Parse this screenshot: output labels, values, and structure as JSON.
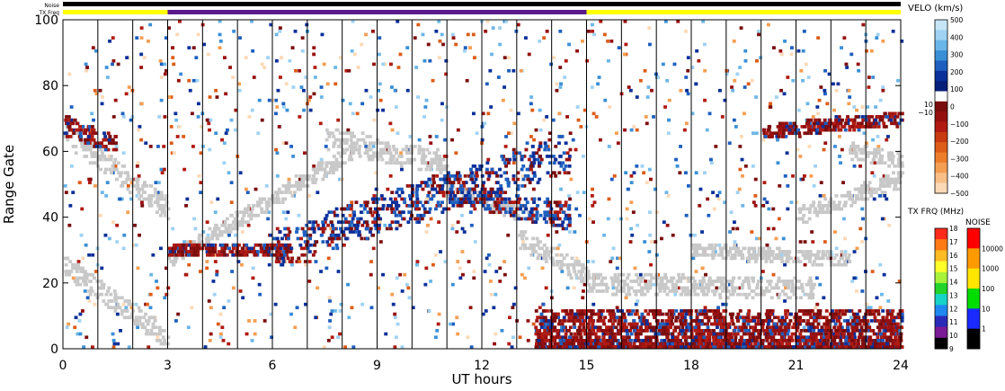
{
  "chart_data": {
    "type": "heatmap",
    "xlabel": "UT hours",
    "ylabel": "Range Gate",
    "xlim": [
      0,
      24
    ],
    "ylim": [
      0,
      100
    ],
    "xticks": [
      "0",
      "3",
      "6",
      "9",
      "12",
      "15",
      "18",
      "21",
      "24"
    ],
    "yticks": [
      "0",
      "20",
      "40",
      "60",
      "80",
      "100"
    ],
    "grid_x_hours": [
      1,
      2,
      3,
      4,
      5,
      6,
      7,
      8,
      9,
      10,
      11,
      12,
      13,
      14,
      15,
      16,
      17,
      18,
      19,
      20,
      21,
      22,
      23
    ],
    "top_bars": {
      "noise_label": "Noise",
      "txfreq_label": "TX Freq",
      "noise_segments": [
        {
          "start": 0,
          "end": 24,
          "color": "#000000"
        }
      ],
      "txfreq_segments": [
        {
          "start": 0,
          "end": 3.0,
          "color": "#ffff00"
        },
        {
          "start": 3.0,
          "end": 15.0,
          "color": "#5a1a8c"
        },
        {
          "start": 15.0,
          "end": 24,
          "color": "#ffff00"
        }
      ]
    },
    "velocity_colorbar": {
      "title": "VELO (km/s)",
      "ticks": [
        "500",
        "400",
        "300",
        "200",
        "100",
        "0",
        "−100",
        "−200",
        "−300",
        "−400",
        "−500"
      ],
      "side_labels": [
        "10",
        "−10"
      ],
      "colors": [
        "#c6e6f8",
        "#9fd2f3",
        "#6bb6e8",
        "#3a8fd6",
        "#1e5fbf",
        "#0a2f9a",
        "#06207a",
        "#ffffff",
        "#7a0d0d",
        "#960f0f",
        "#b01a12",
        "#c83a10",
        "#dd5c18",
        "#ec7e2a",
        "#f49e52",
        "#f9bf86",
        "#fcd9b6"
      ]
    },
    "txfreq_colorbar": {
      "title": "TX FRQ (MHz)",
      "ticks": [
        "18",
        "17",
        "16",
        "15",
        "14",
        "13",
        "12",
        "11",
        "10",
        "9"
      ],
      "colors": [
        "#ff2a1a",
        "#ff7a14",
        "#ffbb22",
        "#ffff2a",
        "#a8f23a",
        "#22d42a",
        "#16d4c8",
        "#1e88f0",
        "#2a2ab8",
        "#7a1a96",
        "#000000"
      ]
    },
    "noise_colorbar": {
      "title": "NOISE",
      "ticks": [
        "10000",
        "1000",
        "100",
        "10",
        "1"
      ],
      "colors": [
        "#ff0000",
        "#ff9a00",
        "#ffe600",
        "#00dd00",
        "#1a2aff",
        "#000000"
      ]
    },
    "scatter": {
      "ground_color": "#c8c8c8",
      "positive_colors": [
        "#0a2f9a",
        "#1e5fbf",
        "#3a8fd6",
        "#6bb6e8",
        "#9fd2f3"
      ],
      "negative_colors": [
        "#7a0d0d",
        "#960f0f",
        "#b01a12",
        "#dd5c18",
        "#f49e52",
        "#fcd9b6"
      ],
      "ground_bands": [
        {
          "t0": 0.0,
          "t1": 3.0,
          "g0": 66,
          "g1": 42,
          "w": 7
        },
        {
          "t0": 0.0,
          "t1": 3.0,
          "g0": 25,
          "g1": 3,
          "w": 6
        },
        {
          "t0": 3.0,
          "t1": 8.3,
          "g0": 27,
          "g1": 60,
          "w": 5
        },
        {
          "t0": 7.5,
          "t1": 11.0,
          "g0": 64,
          "g1": 56,
          "w": 7
        },
        {
          "t0": 11.0,
          "t1": 13.5,
          "g0": 48,
          "g1": 40,
          "w": 5
        },
        {
          "t0": 13.0,
          "t1": 15.0,
          "g0": 34,
          "g1": 22,
          "w": 6
        },
        {
          "t0": 15.0,
          "t1": 21.5,
          "g0": 20,
          "g1": 18,
          "w": 6
        },
        {
          "t0": 18.0,
          "t1": 22.5,
          "g0": 30,
          "g1": 27,
          "w": 4
        },
        {
          "t0": 21.0,
          "t1": 24.0,
          "g0": 40,
          "g1": 52,
          "w": 5
        },
        {
          "t0": 22.5,
          "t1": 24.0,
          "g0": 60,
          "g1": 57,
          "w": 5
        }
      ],
      "ionospheric_bands": [
        {
          "t0": 6.0,
          "t1": 14.5,
          "g0": 30,
          "g1": 60,
          "w": 12,
          "sign": 1
        },
        {
          "t0": 11.0,
          "t1": 14.5,
          "g0": 48,
          "g1": 40,
          "w": 8,
          "sign": 1
        },
        {
          "t0": 3.0,
          "t1": 6.5,
          "g0": 30,
          "g1": 30,
          "w": 4,
          "sign": -1
        },
        {
          "t0": 0.0,
          "t1": 1.5,
          "g0": 68,
          "g1": 62,
          "w": 6,
          "sign": -1
        },
        {
          "t0": 20.0,
          "t1": 24.0,
          "g0": 66,
          "g1": 70,
          "w": 4,
          "sign": -1
        }
      ],
      "near_range_band": {
        "t0": 13.5,
        "t1": 24.0,
        "g0": 0,
        "g1": 12
      }
    }
  }
}
